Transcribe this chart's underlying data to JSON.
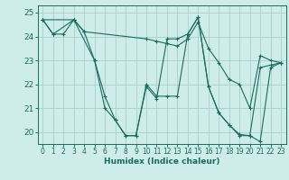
{
  "xlabel": "Humidex (Indice chaleur)",
  "xlim": [
    -0.5,
    23.5
  ],
  "ylim": [
    19.5,
    25.3
  ],
  "yticks": [
    20,
    21,
    22,
    23,
    24,
    25
  ],
  "xticks": [
    0,
    1,
    2,
    3,
    4,
    5,
    6,
    7,
    8,
    9,
    10,
    11,
    12,
    13,
    14,
    15,
    16,
    17,
    18,
    19,
    20,
    21,
    22,
    23
  ],
  "bg_color": "#ceecea",
  "grid_color": "#aed4d0",
  "line_color": "#1a6b5f",
  "lines": [
    {
      "x": [
        0,
        1,
        2,
        3,
        4,
        5,
        6,
        7,
        8,
        9,
        10,
        11,
        12,
        13,
        14,
        15,
        16,
        17,
        18,
        19,
        20,
        21,
        22,
        23
      ],
      "y": [
        24.7,
        24.1,
        24.1,
        24.7,
        24.2,
        23.0,
        21.0,
        20.5,
        19.85,
        19.85,
        21.9,
        21.4,
        23.9,
        23.9,
        24.1,
        24.8,
        21.9,
        20.8,
        20.3,
        19.9,
        19.85,
        22.7,
        22.8,
        22.9
      ]
    },
    {
      "x": [
        0,
        1,
        3,
        4,
        10,
        11,
        12,
        13,
        14,
        15,
        16,
        17,
        18,
        19,
        20,
        21,
        22,
        23
      ],
      "y": [
        24.7,
        24.1,
        24.7,
        24.2,
        23.9,
        23.8,
        23.7,
        23.6,
        23.9,
        24.6,
        23.5,
        22.9,
        22.2,
        22.0,
        21.0,
        23.2,
        23.0,
        22.9
      ]
    },
    {
      "x": [
        0,
        3,
        5,
        6,
        7,
        8,
        9,
        10,
        11,
        12,
        13,
        14,
        15,
        16,
        17,
        18,
        19,
        20,
        21,
        22,
        23
      ],
      "y": [
        24.7,
        24.7,
        23.0,
        21.5,
        20.5,
        19.85,
        19.85,
        22.0,
        21.5,
        21.5,
        21.5,
        24.1,
        24.8,
        21.9,
        20.8,
        20.3,
        19.85,
        19.85,
        19.6,
        22.7,
        22.9
      ]
    }
  ]
}
